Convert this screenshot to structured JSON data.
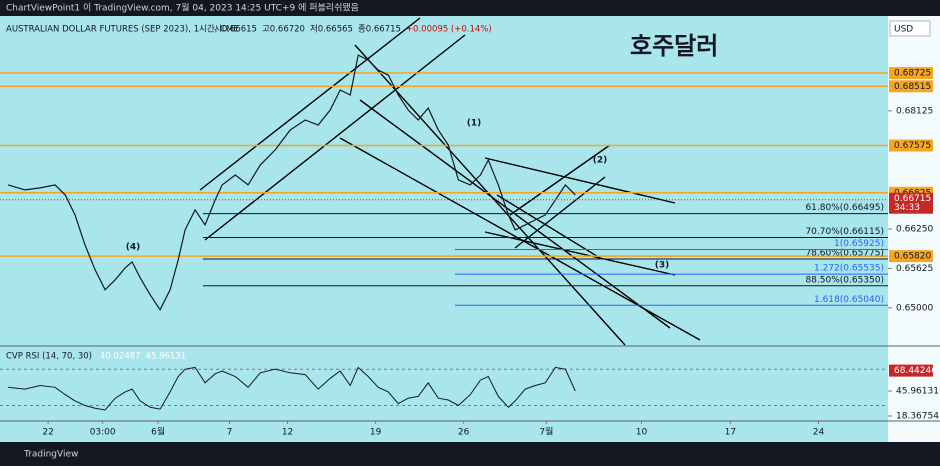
{
  "header": {
    "text": "ChartViewPoint1 이 TradingView.com, 7월 04, 2023 14:25 UTC+9 에 퍼블리쉬됐음"
  },
  "footer": {
    "brand": "TradingView"
  },
  "chart_data": [
    {
      "type": "line",
      "title": "AUSTRALIAN DOLLAR FUTURES (SEP 2023), 1시간, CME",
      "legend_values": [
        "시0.66615",
        "고0.66720",
        "저0.66565",
        "종0.66715",
        "+0.00095 (+0.14%)"
      ],
      "annotation": "호주달러",
      "currency": "USD",
      "wave_labels": [
        "(1)",
        "(2)",
        "(3)",
        "(4)"
      ],
      "x": [
        -2.27,
        -1.31,
        -0.45,
        0.4,
        0.97,
        1.53,
        2.1,
        2.67,
        3.24,
        3.81,
        4.38,
        4.77,
        5.23,
        5.8,
        6.36,
        6.93,
        7.39,
        7.78,
        8.35,
        8.92,
        9.49,
        9.89,
        10.63,
        11.36,
        12.05,
        12.9,
        13.75,
        14.6,
        15.34,
        16.02,
        16.59,
        17.16,
        17.61,
        18.18,
        18.75,
        19.32,
        19.89,
        20.45,
        21.02,
        21.59,
        22.16,
        22.73,
        23.3,
        23.98,
        24.55,
        25.0,
        25.57,
        26.14,
        26.53,
        27.1,
        27.67,
        28.24,
        28.81,
        29.38,
        29.94
      ],
      "series": [
        {
          "color": "#131722",
          "values": [
            0.6695,
            0.66871,
            0.66902,
            0.6695,
            0.66791,
            0.66474,
            0.65999,
            0.65603,
            0.65286,
            0.65444,
            0.65634,
            0.65729,
            0.65476,
            0.65206,
            0.64969,
            0.65286,
            0.65761,
            0.66237,
            0.66554,
            0.66316,
            0.66712,
            0.6695,
            0.67108,
            0.6695,
            0.67267,
            0.67505,
            0.67822,
            0.6798,
            0.67901,
            0.68139,
            0.68456,
            0.68376,
            0.6901,
            0.68931,
            0.68773,
            0.68693,
            0.68376,
            0.68139,
            0.6798,
            0.6817,
            0.67822,
            0.67584,
            0.67029,
            0.6695,
            0.67108,
            0.67346,
            0.6695,
            0.66474,
            0.66237,
            0.66316,
            0.66395,
            0.66474,
            0.66712,
            0.6695,
            0.66791
          ]
        }
      ],
      "xlim": [
        -2.73,
        47.7
      ],
      "xticks": [
        {
          "value": 0,
          "label": "22"
        },
        {
          "value": 3.1,
          "label": "03:00"
        },
        {
          "value": 6.25,
          "label": "6월"
        },
        {
          "value": 10.3,
          "label": "7"
        },
        {
          "value": 13.6,
          "label": "12"
        },
        {
          "value": 18.6,
          "label": "19"
        },
        {
          "value": 23.6,
          "label": "26"
        },
        {
          "value": 28.3,
          "label": "7월"
        },
        {
          "value": 33.7,
          "label": "10"
        },
        {
          "value": 38.75,
          "label": "17"
        },
        {
          "value": 43.75,
          "label": "24"
        }
      ],
      "ylim": [
        0.6441,
        0.6963
      ],
      "yticks": [
        0.68125,
        {
          "value": 0.6625,
          "label": "0.66250"
        },
        0.65625,
        {
          "value": 0.65,
          "label": "0.65000"
        }
      ],
      "levels": [
        0.68725,
        0.68515,
        0.67575,
        0.66825,
        {
          "value": 0.6582,
          "label": "0.65820"
        }
      ],
      "level_color": "#f5a623",
      "current_price": {
        "value": 0.66715,
        "countdown": "34:33",
        "color": "#c62828"
      },
      "fib": [
        {
          "label": "61.80%(0.66495)",
          "value": 0.66495,
          "color": "#131722"
        },
        {
          "label": "70.70%(0.66115)",
          "value": 0.66115,
          "color": "#131722"
        },
        {
          "label": "78.60%(0.65775)",
          "value": 0.65775,
          "color": "#131722"
        },
        {
          "label": "88.50%(0.65350)",
          "value": 0.6535,
          "color": "#131722"
        },
        {
          "label": "1(0.65925)",
          "value": 0.65925,
          "color": "#2962ff"
        },
        {
          "label": "1.272(0.65535)",
          "value": 0.65535,
          "color": "#2962ff"
        },
        {
          "label": "1.618(0.65040)",
          "value": 0.6504,
          "color": "#2962ff"
        }
      ]
    },
    {
      "type": "line",
      "title": "CVP RSI (14, 70, 30)",
      "legend_values": [
        "40.02487",
        "45.96131"
      ],
      "x": [
        -2.27,
        -1.31,
        -0.45,
        0.4,
        0.97,
        1.53,
        2.1,
        2.67,
        3.24,
        3.81,
        4.38,
        4.77,
        5.23,
        5.8,
        6.36,
        6.93,
        7.39,
        7.78,
        8.35,
        8.92,
        9.49,
        9.89,
        10.63,
        11.36,
        12.05,
        12.9,
        13.75,
        14.6,
        15.34,
        16.02,
        16.59,
        17.16,
        17.61,
        18.18,
        18.75,
        19.32,
        19.89,
        20.45,
        21.02,
        21.59,
        22.16,
        22.73,
        23.3,
        23.98,
        24.55,
        25.0,
        25.57,
        26.14,
        26.53,
        27.1,
        27.67,
        28.24,
        28.81,
        29.38,
        29.94
      ],
      "series": [
        {
          "color": "#131722",
          "values": [
            50,
            48,
            52,
            50,
            42,
            35,
            30,
            27,
            25,
            38,
            45,
            48,
            35,
            28,
            26,
            45,
            62,
            70,
            72,
            55,
            65,
            68,
            62,
            50,
            66,
            70,
            66,
            64,
            48,
            60,
            68,
            52,
            72,
            62,
            50,
            45,
            32,
            38,
            40,
            55,
            38,
            36,
            30,
            42,
            58,
            62,
            40,
            28,
            35,
            48,
            52,
            55,
            72,
            70,
            46
          ]
        }
      ],
      "xlim": [
        -2.73,
        47.7
      ],
      "ylim": [
        13.95,
        94.5
      ],
      "yticks": [
        45.96131,
        18.36754
      ],
      "levels": [
        70,
        30
      ],
      "highlight": {
        "value": 68.44246,
        "color": "#c62828"
      }
    }
  ]
}
